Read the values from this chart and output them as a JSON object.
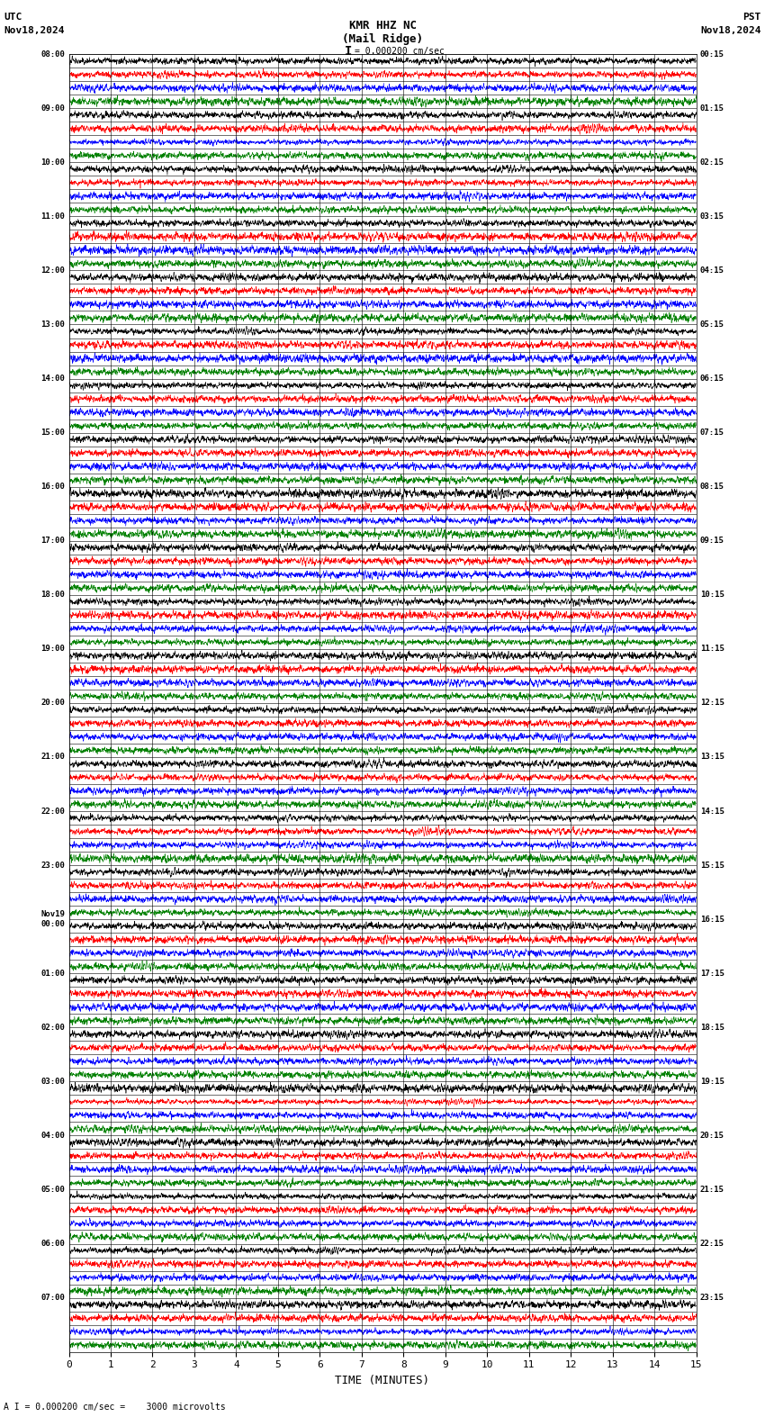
{
  "title_line1": "KMR HHZ NC",
  "title_line2": "(Mail Ridge)",
  "scale_label": "= 0.000200 cm/sec",
  "utc_label": "UTC",
  "utc_date": "Nov18,2024",
  "pst_label": "PST",
  "pst_date": "Nov18,2024",
  "bottom_label": "A I = 0.000200 cm/sec =    3000 microvolts",
  "xlabel": "TIME (MINUTES)",
  "left_times": [
    "08:00",
    "09:00",
    "10:00",
    "11:00",
    "12:00",
    "13:00",
    "14:00",
    "15:00",
    "16:00",
    "17:00",
    "18:00",
    "19:00",
    "20:00",
    "21:00",
    "22:00",
    "23:00",
    "Nov19\n00:00",
    "01:00",
    "02:00",
    "03:00",
    "04:00",
    "05:00",
    "06:00",
    "07:00"
  ],
  "right_times": [
    "00:15",
    "01:15",
    "02:15",
    "03:15",
    "04:15",
    "05:15",
    "06:15",
    "07:15",
    "08:15",
    "09:15",
    "10:15",
    "11:15",
    "12:15",
    "13:15",
    "14:15",
    "15:15",
    "16:15",
    "17:15",
    "18:15",
    "19:15",
    "20:15",
    "21:15",
    "22:15",
    "23:15"
  ],
  "n_rows": 96,
  "minutes_per_row": 15,
  "colors": [
    "black",
    "red",
    "blue",
    "green"
  ],
  "bg_color": "#ffffff",
  "fig_width": 8.5,
  "fig_height": 15.84,
  "dpi": 100,
  "seed": 42,
  "xticks": [
    0,
    1,
    2,
    3,
    4,
    5,
    6,
    7,
    8,
    9,
    10,
    11,
    12,
    13,
    14,
    15
  ],
  "xticklabels": [
    "0",
    "1",
    "2",
    "3",
    "4",
    "5",
    "6",
    "7",
    "8",
    "9",
    "10",
    "11",
    "12",
    "13",
    "14",
    "15"
  ]
}
